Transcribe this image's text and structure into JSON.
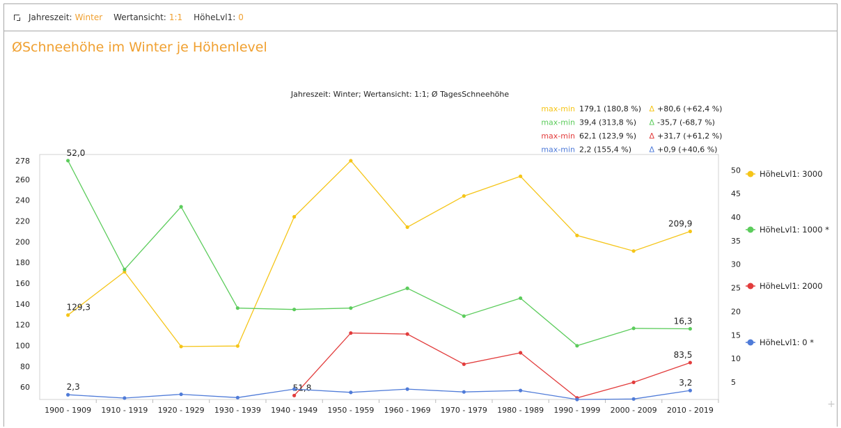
{
  "filters": [
    {
      "label": "Jahreszeit:",
      "value": "Winter"
    },
    {
      "label": "Wertansicht:",
      "value": "1:1"
    },
    {
      "label": "HöheLvl1:",
      "value": "0"
    }
  ],
  "page_title": "ØSchneehöhe im Winter je Höhenlevel",
  "chart_data": {
    "type": "line",
    "title": "Jahreszeit: Winter;  Wertansicht: 1:1;  Ø TagesSchneehöhe",
    "categories": [
      "1900 - 1909",
      "1910 - 1919",
      "1920 - 1929",
      "1930 - 1939",
      "1940 - 1949",
      "1950 - 1959",
      "1960 - 1969",
      "1970 - 1979",
      "1980 - 1989",
      "1990 - 1999",
      "2000 - 2009",
      "2010 - 2019"
    ],
    "y_left": {
      "range": [
        48,
        284
      ],
      "ticks": [
        60,
        80,
        100,
        120,
        140,
        160,
        180,
        200,
        220,
        240,
        260,
        278
      ]
    },
    "y_right": {
      "range": [
        1.3,
        53.3
      ],
      "ticks": [
        5,
        10,
        15,
        20,
        25,
        30,
        35,
        40,
        45,
        50
      ]
    },
    "series": [
      {
        "name": "HöheLvl1: 3000",
        "color": "#f5c518",
        "axis": "left",
        "values": [
          129.3,
          171,
          99,
          99.5,
          224,
          278,
          214,
          244,
          263,
          206,
          191,
          209.9
        ],
        "labels": [
          {
            "index": 0,
            "text": "129,3"
          },
          {
            "index": 11,
            "text": "209,9"
          }
        ]
      },
      {
        "name": "HöheLvl1: 1000 *",
        "color": "#5ccc5c",
        "axis": "right",
        "values": [
          52.0,
          28.9,
          42.2,
          20.7,
          20.4,
          20.7,
          24.9,
          19.0,
          22.8,
          12.7,
          16.4,
          16.3
        ],
        "labels": [
          {
            "index": 0,
            "text": "52,0"
          },
          {
            "index": 11,
            "text": "16,3"
          }
        ]
      },
      {
        "name": "HöheLvl1: 2000",
        "color": "#e23c3c",
        "axis": "left",
        "values": [
          null,
          null,
          null,
          null,
          51.8,
          112,
          111,
          82,
          93,
          49.5,
          64.5,
          83.5
        ],
        "labels": [
          {
            "index": 4,
            "text": "51,8"
          },
          {
            "index": 11,
            "text": "83,5"
          }
        ]
      },
      {
        "name": "HöheLvl1: 0 *",
        "color": "#4f7bd8",
        "axis": "right",
        "values": [
          2.3,
          1.6,
          2.4,
          1.7,
          3.5,
          2.8,
          3.5,
          2.9,
          3.2,
          1.3,
          1.4,
          3.2
        ],
        "labels": [
          {
            "index": 0,
            "text": "2,3"
          },
          {
            "index": 11,
            "text": "3,2"
          }
        ]
      }
    ],
    "stats": [
      {
        "label": "max-min",
        "value": "179,1 (180,8 %)",
        "delta": "+80,6 (+62,4 %)",
        "color": "#f5c518"
      },
      {
        "label": "max-min",
        "value": "39,4 (313,8 %)",
        "delta": "-35,7 (-68,7 %)",
        "color": "#5ccc5c"
      },
      {
        "label": "max-min",
        "value": "62,1 (123,9 %)",
        "delta": "+31,7 (+61,2 %)",
        "color": "#e23c3c"
      },
      {
        "label": "max-min",
        "value": "2,2 (155,4 %)",
        "delta": "+0,9 (+40,6 %)",
        "color": "#4f7bd8"
      }
    ],
    "delta_symbol": "Δ",
    "legend": "right",
    "grid": false
  }
}
